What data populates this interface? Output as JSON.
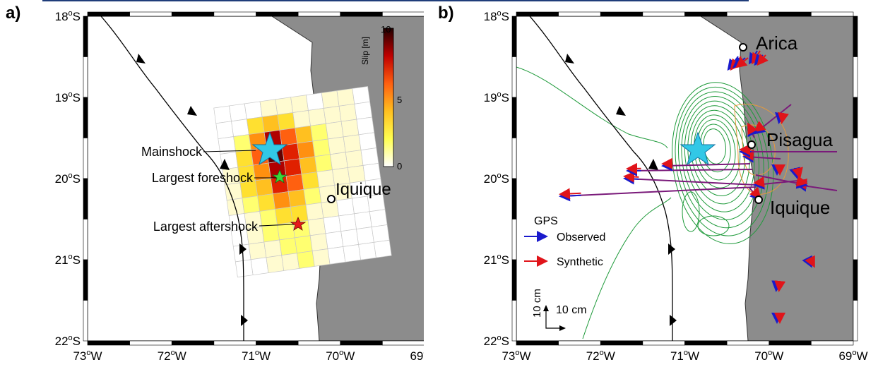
{
  "panels": [
    {
      "label": "a)",
      "lat_ticks": [
        "18",
        "19",
        "20",
        "21",
        "22"
      ],
      "lon_ticks": [
        "73",
        "72",
        "71",
        "70",
        "69"
      ],
      "lat_suffix": "S",
      "lon_suffix": "W",
      "deg": "o",
      "colorbar": {
        "title": "Slip [m]",
        "max_label": "10",
        "mid_label": "5",
        "min_label": "0",
        "range": [
          0,
          10
        ]
      },
      "annotations": [
        {
          "text": "Mainshock",
          "symbol": "cyan-star",
          "lon": -70.82,
          "lat": -19.64
        },
        {
          "text": "Largest foreshock",
          "symbol": "green-star",
          "lon": -70.75,
          "lat": -19.97
        },
        {
          "text": "Largest aftershock",
          "symbol": "red-star",
          "lon": -70.52,
          "lat": -20.58
        }
      ],
      "cities": [
        {
          "text": "Iquique",
          "lon": -70.15,
          "lat": -20.22
        }
      ]
    },
    {
      "label": "b)",
      "lat_ticks": [
        "18",
        "19",
        "20",
        "21",
        "22"
      ],
      "lon_ticks": [
        "73",
        "72",
        "71",
        "70",
        "69"
      ],
      "lat_suffix": "S",
      "lon_suffix": "W",
      "deg": "o",
      "cities": [
        {
          "text": "Arica",
          "lon": -70.31,
          "lat": -18.47
        },
        {
          "text": "Pisagua",
          "lon": -70.21,
          "lat": -19.6
        },
        {
          "text": "Iquique",
          "lon": -70.15,
          "lat": -20.22
        }
      ],
      "legend": {
        "title": "GPS",
        "observed": "Observed",
        "synthetic": "Synthetic",
        "observed_color": "#1a1acc",
        "synthetic_color": "#e0141a"
      },
      "scale": {
        "vertical": "10 cm",
        "horizontal": "10 cm"
      },
      "epicenter": {
        "lon": -70.82,
        "lat": -19.64
      }
    }
  ],
  "colors": {
    "land": "#8c8c8c",
    "trench": "#000000",
    "slip_contour": "#1e9a3a",
    "post_contour": "#e69a3a",
    "gps_obs": "#1a1acc",
    "gps_syn": "#e0141a",
    "gps_line": "#7a1a7a"
  }
}
